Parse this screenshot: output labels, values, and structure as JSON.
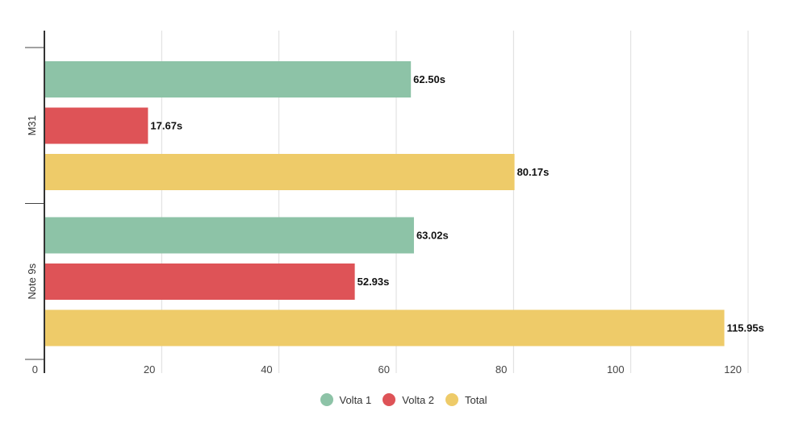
{
  "chart_data": {
    "type": "bar",
    "orientation": "horizontal",
    "categories": [
      "M31",
      "Note 9s"
    ],
    "series": [
      {
        "name": "Volta 1",
        "color": "#8dc3a7",
        "values": [
          62.5,
          63.02
        ],
        "labels": [
          "62.50s",
          "63.02s"
        ]
      },
      {
        "name": "Volta 2",
        "color": "#de5357",
        "values": [
          17.67,
          52.93
        ],
        "labels": [
          "17.67s",
          "52.93s"
        ]
      },
      {
        "name": "Total",
        "color": "#eecb69",
        "values": [
          80.17,
          115.95
        ],
        "labels": [
          "80.17s",
          "115.95s"
        ]
      }
    ],
    "xlim": [
      0,
      120
    ],
    "xticks": [
      "0",
      "20",
      "40",
      "60",
      "80",
      "100",
      "120"
    ],
    "grid": true,
    "legend": "bottom"
  }
}
